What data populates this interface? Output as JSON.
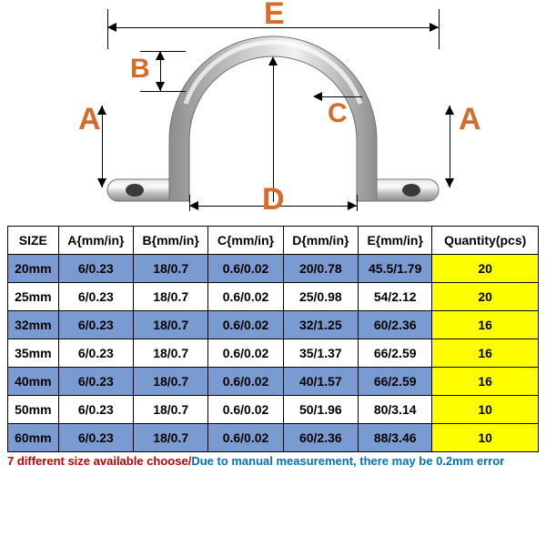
{
  "diagram": {
    "labels": {
      "A": "A",
      "B": "B",
      "C": "C",
      "D": "D",
      "E": "E"
    },
    "label_color": "#d96b2a",
    "label_fontsize": 30,
    "clamp_stroke": "#8a8a8a",
    "clamp_fill_light": "#d9d9d9",
    "clamp_fill_dark": "#9e9e9e"
  },
  "table": {
    "columns": [
      "SIZE",
      "A{mm/in}",
      "B{mm/in}",
      "C{mm/in}",
      "D{mm/in}",
      "E{mm/in}",
      "Quantity(pcs)"
    ],
    "rows": [
      [
        "20mm",
        "6/0.23",
        "18/0.7",
        "0.6/0.02",
        "20/0.78",
        "45.5/1.79",
        "20"
      ],
      [
        "25mm",
        "6/0.23",
        "18/0.7",
        "0.6/0.02",
        "25/0.98",
        "54/2.12",
        "20"
      ],
      [
        "32mm",
        "6/0.23",
        "18/0.7",
        "0.6/0.02",
        "32/1.25",
        "60/2.36",
        "16"
      ],
      [
        "35mm",
        "6/0.23",
        "18/0.7",
        "0.6/0.02",
        "35/1.37",
        "66/2.59",
        "16"
      ],
      [
        "40mm",
        "6/0.23",
        "18/0.7",
        "0.6/0.02",
        "40/1.57",
        "66/2.59",
        "16"
      ],
      [
        "50mm",
        "6/0.23",
        "18/0.7",
        "0.6/0.02",
        "50/1.96",
        "80/3.14",
        "10"
      ],
      [
        "60mm",
        "6/0.23",
        "18/0.7",
        "0.6/0.02",
        "60/2.36",
        "88/3.46",
        "10"
      ]
    ],
    "header_bg": "#ffffff",
    "row_blue_bg": "#7a9bd1",
    "row_white_bg": "#ffffff",
    "qty_bg": "#ffff00",
    "border_color": "#000000",
    "font_size": 14
  },
  "footnote": {
    "part_a": "7 different size available choose/",
    "part_b": "Due to manual measurement, there may be 0.2mm error",
    "color_a": "#c00000",
    "color_b": "#0070c0"
  }
}
